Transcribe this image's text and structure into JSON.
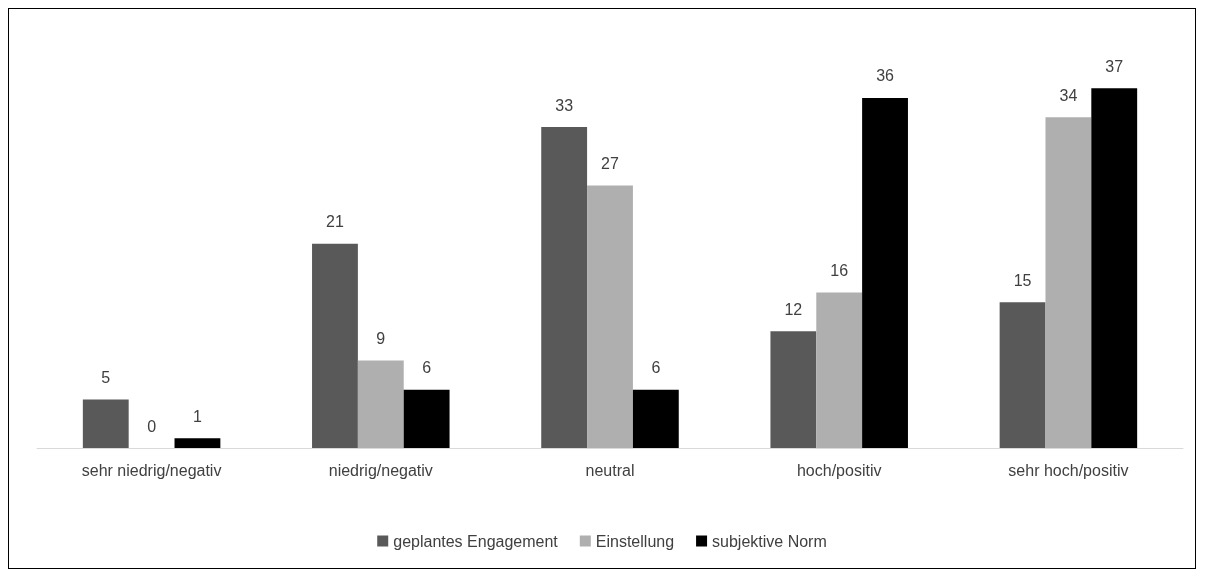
{
  "chart_data": {
    "type": "bar",
    "categories": [
      "sehr niedrig/negativ",
      "niedrig/negativ",
      "neutral",
      "hoch/positiv",
      "sehr hoch/positiv"
    ],
    "series": [
      {
        "name": "geplantes Engagement",
        "color": "#595959",
        "values": [
          5,
          21,
          33,
          12,
          15
        ]
      },
      {
        "name": "Einstellung",
        "color": "#afafaf",
        "values": [
          0,
          9,
          27,
          16,
          34
        ]
      },
      {
        "name": "subjektive Norm",
        "color": "#000000",
        "values": [
          1,
          6,
          6,
          36,
          37
        ]
      }
    ],
    "data_labels": true,
    "legend": "bottom"
  }
}
